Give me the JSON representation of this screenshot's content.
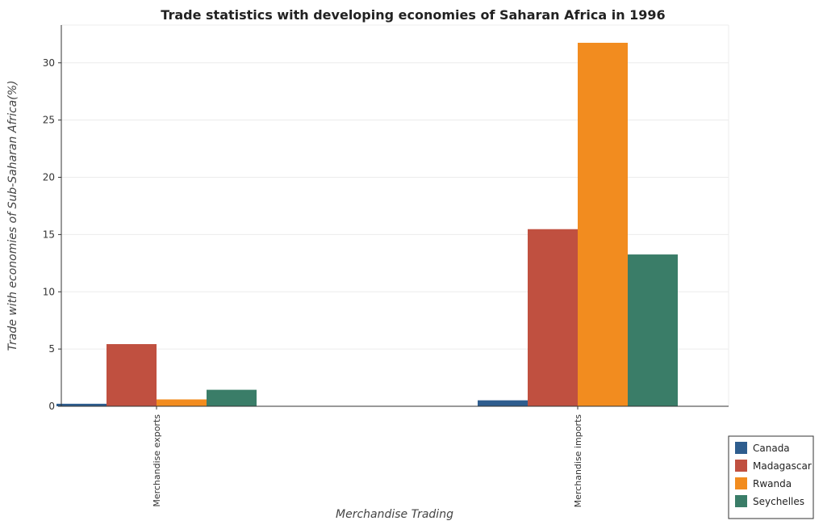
{
  "chart_data": {
    "type": "bar",
    "title": "Trade statistics with developing economies of Saharan Africa in 1996",
    "xlabel": "Merchandise Trading",
    "ylabel": "Trade with economies of Sub-Saharan Africa(%)",
    "categories": [
      "Merchandise exports",
      "Merchandise imports"
    ],
    "series": [
      {
        "name": "Canada",
        "color": "#2e5d8e",
        "values": [
          0.22,
          0.52
        ]
      },
      {
        "name": "Madagascar",
        "color": "#c05040",
        "values": [
          5.43,
          15.47
        ]
      },
      {
        "name": "Rwanda",
        "color": "#f28c1f",
        "values": [
          0.6,
          31.75
        ]
      },
      {
        "name": "Seychelles",
        "color": "#3a7d68",
        "values": [
          1.44,
          13.26
        ]
      }
    ],
    "ylim": [
      0,
      33.3
    ],
    "yticks": [
      0,
      5,
      10,
      15,
      20,
      25,
      30
    ],
    "grid": true,
    "legend_position": "bottom-right"
  }
}
